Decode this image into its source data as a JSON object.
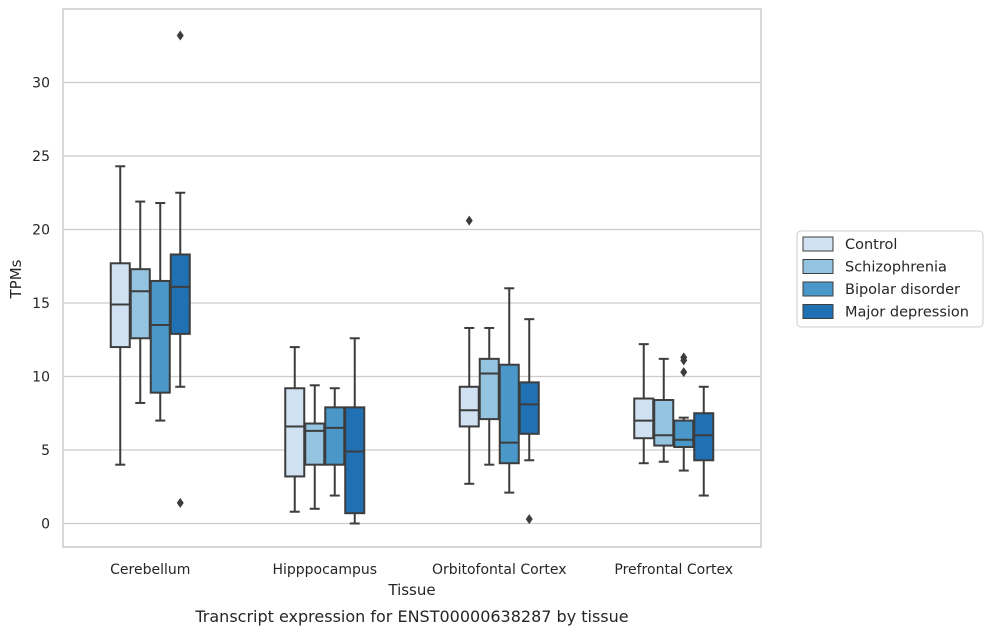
{
  "chart_data": {
    "type": "box",
    "title": "",
    "caption": "Transcript expression for ENST00000638287 by tissue",
    "xlabel": "Tissue",
    "ylabel": "TPMs",
    "ylim": [
      -1.6,
      35
    ],
    "yticks": [
      0,
      5,
      10,
      15,
      20,
      25,
      30
    ],
    "grid": "horizontal",
    "legend_position": "center-right",
    "categories": [
      "Cerebellum",
      "Hipppocampus",
      "Orbitofontal Cortex",
      "Prefrontal Cortex"
    ],
    "series": [
      {
        "name": "Control",
        "color": "#d0e1f2",
        "boxes": [
          {
            "whislo": 4.0,
            "q1": 12.0,
            "med": 14.9,
            "q3": 17.7,
            "whishi": 24.3,
            "fliers": []
          },
          {
            "whislo": 0.8,
            "q1": 3.2,
            "med": 6.6,
            "q3": 9.2,
            "whishi": 12.0,
            "fliers": []
          },
          {
            "whislo": 2.7,
            "q1": 6.6,
            "med": 7.7,
            "q3": 9.3,
            "whishi": 13.3,
            "fliers": [
              20.6
            ]
          },
          {
            "whislo": 4.1,
            "q1": 5.8,
            "med": 7.0,
            "q3": 8.5,
            "whishi": 12.2,
            "fliers": []
          }
        ]
      },
      {
        "name": "Schizophrenia",
        "color": "#94c4df",
        "boxes": [
          {
            "whislo": 8.2,
            "q1": 12.6,
            "med": 15.8,
            "q3": 17.3,
            "whishi": 21.9,
            "fliers": []
          },
          {
            "whislo": 1.0,
            "q1": 4.0,
            "med": 6.3,
            "q3": 6.8,
            "whishi": 9.4,
            "fliers": []
          },
          {
            "whislo": 4.0,
            "q1": 7.1,
            "med": 10.2,
            "q3": 11.2,
            "whishi": 13.3,
            "fliers": []
          },
          {
            "whislo": 4.2,
            "q1": 5.3,
            "med": 6.0,
            "q3": 8.4,
            "whishi": 11.2,
            "fliers": []
          }
        ]
      },
      {
        "name": "Bipolar disorder",
        "color": "#4a98c9",
        "boxes": [
          {
            "whislo": 7.0,
            "q1": 8.9,
            "med": 13.5,
            "q3": 16.5,
            "whishi": 21.8,
            "fliers": []
          },
          {
            "whislo": 1.9,
            "q1": 4.0,
            "med": 6.5,
            "q3": 7.9,
            "whishi": 9.2,
            "fliers": []
          },
          {
            "whislo": 2.1,
            "q1": 4.1,
            "med": 5.5,
            "q3": 10.8,
            "whishi": 16.0,
            "fliers": []
          },
          {
            "whislo": 3.6,
            "q1": 5.2,
            "med": 5.7,
            "q3": 7.0,
            "whishi": 7.2,
            "fliers": [
              10.3,
              11.1,
              11.3
            ]
          }
        ]
      },
      {
        "name": "Major depression",
        "color": "#2070b4",
        "boxes": [
          {
            "whislo": 9.3,
            "q1": 12.9,
            "med": 16.1,
            "q3": 18.3,
            "whishi": 22.5,
            "fliers": [
              1.4,
              33.2
            ]
          },
          {
            "whislo": 0.0,
            "q1": 0.7,
            "med": 4.9,
            "q3": 7.9,
            "whishi": 12.6,
            "fliers": []
          },
          {
            "whislo": 4.3,
            "q1": 6.1,
            "med": 8.1,
            "q3": 9.6,
            "whishi": 13.9,
            "fliers": [
              0.3
            ]
          },
          {
            "whislo": 1.9,
            "q1": 4.3,
            "med": 6.0,
            "q3": 7.5,
            "whishi": 9.3,
            "fliers": []
          }
        ]
      }
    ]
  }
}
